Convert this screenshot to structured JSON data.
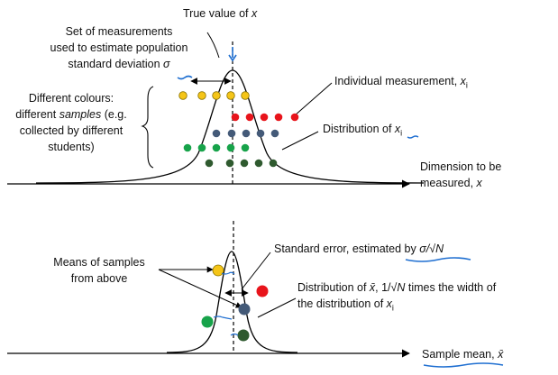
{
  "top_panel": {
    "true_value": {
      "text": "True value of ",
      "var": "x"
    },
    "set_of_measurements": {
      "line1": "Set of measurements",
      "line2": "used to estimate population",
      "line3": "standard deviation ",
      "sigma": "σ"
    },
    "different_colours": {
      "line1": "Different colours:",
      "line2_pre": "different ",
      "line2_it": "samples",
      "line2_post": " (e.g.",
      "line3": "collected by different",
      "line4": "students)"
    },
    "individual_measurement": {
      "text": "Individual measurement, ",
      "var": "x",
      "sub": "i"
    },
    "distribution_xi": {
      "text": "Distribution of ",
      "var": "x",
      "sub": "i"
    },
    "dimension": {
      "line1": "Dimension to be",
      "line2": "measured, ",
      "var": "x"
    },
    "rows": [
      {
        "color": "#f5c518",
        "hollow": true
      },
      {
        "color": "#e8141b"
      },
      {
        "color": "#445a78"
      },
      {
        "color": "#17a34a"
      },
      {
        "color": "#2f5a2f"
      }
    ]
  },
  "bottom_panel": {
    "means_of_samples": {
      "line1": "Means of samples",
      "line2": "from above"
    },
    "standard_error": {
      "text": "Standard error, estimated by ",
      "formula": "σ/√N"
    },
    "distribution_xbar": {
      "line1_pre": "Distribution of ",
      "xbar": "x̄",
      "line1_mid": ", 1/",
      "sqrtN": "√N",
      "line1_post": " times the width of",
      "line2": "the distribution of ",
      "var": "x",
      "sub": "i"
    },
    "sample_mean": {
      "text": "Sample mean, ",
      "xbar": "x̄"
    }
  },
  "colors": {
    "yellow": "#f5c518",
    "red": "#e8141b",
    "slate": "#445a78",
    "green": "#17a34a",
    "darkgreen": "#2f5a2f",
    "annotation_blue": "#1f6fd1"
  }
}
